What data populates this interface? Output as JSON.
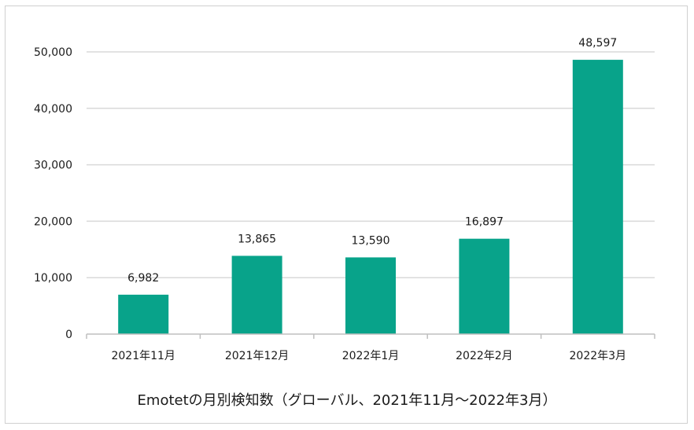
{
  "chart_data": {
    "type": "bar",
    "title": "Emotetの月別検知数（グローバル、2021年11月～2022年3月）",
    "categories": [
      "2021年11月",
      "2021年12月",
      "2022年1月",
      "2022年2月",
      "2022年3月"
    ],
    "values": [
      6982,
      13865,
      13590,
      16897,
      48597
    ],
    "data_labels": [
      "6,982",
      "13,865",
      "13,590",
      "16,897",
      "48,597"
    ],
    "y_ticks": [
      0,
      10000,
      20000,
      30000,
      40000,
      50000
    ],
    "y_tick_labels": [
      "0",
      "10,000",
      "20,000",
      "30,000",
      "40,000",
      "50,000"
    ],
    "ylim": [
      0,
      50000
    ],
    "xlabel": "",
    "ylabel": "",
    "grid": true,
    "legend": "none",
    "bar_color": "#08a38a",
    "grid_color": "#d9d9d9",
    "axis_color": "#bfbfbf"
  }
}
